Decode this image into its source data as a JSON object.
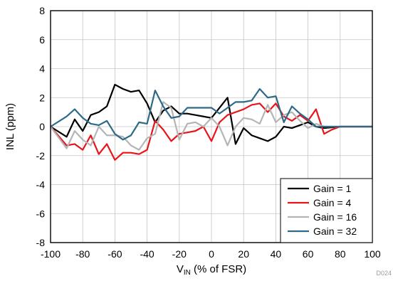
{
  "chart_data": {
    "type": "line",
    "xlabel_main": "V",
    "xlabel_sub": "IN",
    "xlabel_rest": " (% of FSR)",
    "ylabel": "INL (ppm)",
    "xlim": [
      -100,
      100
    ],
    "ylim": [
      -8,
      8
    ],
    "xticks": [
      -100,
      -80,
      -60,
      -40,
      -20,
      0,
      20,
      40,
      60,
      80,
      100
    ],
    "yticks": [
      -8,
      -6,
      -4,
      -2,
      0,
      2,
      4,
      6,
      8
    ],
    "grid": true,
    "legend_position": "bottom-right",
    "figure_id": "D024",
    "x": [
      -100,
      -90,
      -85,
      -80,
      -75,
      -70,
      -65,
      -60,
      -55,
      -50,
      -45,
      -40,
      -35,
      -30,
      -25,
      -20,
      -15,
      -10,
      -5,
      0,
      5,
      10,
      15,
      20,
      25,
      30,
      35,
      40,
      45,
      50,
      55,
      60,
      65,
      70,
      75,
      80,
      85,
      90,
      95,
      100
    ],
    "series": [
      {
        "name": "Gain = 1",
        "color": "#000000",
        "values": [
          0,
          -0.7,
          0.5,
          -0.3,
          0.8,
          1.0,
          1.4,
          2.9,
          2.6,
          2.4,
          2.5,
          1.6,
          0.3,
          1.1,
          1.4,
          0.9,
          0.9,
          0.8,
          0.7,
          0.6,
          1.3,
          2.0,
          -1.2,
          -0.1,
          -0.6,
          -0.8,
          -1.0,
          -0.7,
          0.0,
          -0.1,
          0.1,
          0.3,
          0.0,
          -0.1,
          -0.05,
          0.0,
          0.0,
          0.0,
          0.0,
          0.0
        ]
      },
      {
        "name": "Gain = 4",
        "color": "#e8141b",
        "values": [
          0,
          -1.3,
          -1.2,
          -1.6,
          -0.6,
          -1.9,
          -1.2,
          -2.3,
          -1.8,
          -1.8,
          -1.9,
          -1.6,
          0.4,
          -0.2,
          -1.0,
          -0.5,
          -0.4,
          -0.3,
          0.0,
          -1.0,
          0.3,
          0.8,
          1.0,
          1.2,
          1.5,
          1.6,
          1.0,
          1.6,
          0.7,
          0.4,
          0.8,
          0.4,
          1.2,
          -0.5,
          -0.2,
          0.0,
          0.0,
          0.0,
          0.0,
          0.0
        ]
      },
      {
        "name": "Gain = 16",
        "color": "#b5b5b5",
        "values": [
          0,
          -1.5,
          -0.3,
          -0.9,
          -1.3,
          0.0,
          -0.6,
          -0.6,
          -0.7,
          -1.3,
          -1.6,
          -0.8,
          -0.5,
          1.7,
          1.3,
          -0.9,
          0.2,
          0.3,
          0.0,
          0.6,
          0.0,
          -1.3,
          0.0,
          0.6,
          0.5,
          0.2,
          1.5,
          0.3,
          0.8,
          1.0,
          0.4,
          -0.1,
          0.2,
          0.0,
          0.0,
          0.0,
          0.0,
          0.0,
          0.0,
          0.0
        ]
      },
      {
        "name": "Gain = 32",
        "color": "#2e6a88",
        "values": [
          0,
          0.7,
          1.2,
          0.6,
          0.2,
          0.1,
          0.4,
          -0.5,
          -0.9,
          -0.6,
          0.3,
          0.2,
          2.5,
          1.4,
          0.6,
          0.7,
          1.3,
          1.3,
          1.3,
          1.3,
          0.9,
          1.3,
          1.7,
          1.7,
          1.8,
          2.6,
          2.0,
          2.1,
          0.3,
          1.4,
          0.9,
          0.5,
          0.0,
          0.0,
          0.0,
          0.0,
          0.0,
          0.0,
          0.0,
          0.0
        ]
      }
    ]
  }
}
